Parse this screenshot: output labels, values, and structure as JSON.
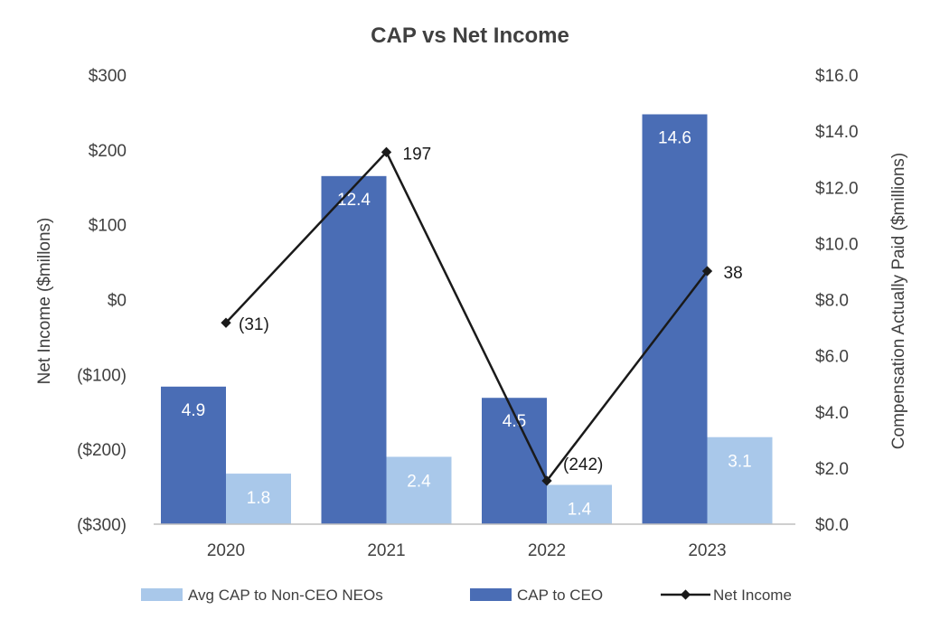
{
  "chart_data": {
    "type": "bar",
    "title": "CAP vs Net Income",
    "categories": [
      "2020",
      "2021",
      "2022",
      "2023"
    ],
    "ylabel_left": "Net Income ($millons)",
    "ylabel_right": "Compensation Actually Paid ($millions)",
    "ylim_left": [
      -300,
      300
    ],
    "ylim_right": [
      0,
      16
    ],
    "left_ticks": [
      "$300",
      "$200",
      "$100",
      "$0",
      "($100)",
      "($200)",
      "($300)"
    ],
    "left_tick_values": [
      300,
      200,
      100,
      0,
      -100,
      -200,
      -300
    ],
    "right_ticks": [
      "$16.0",
      "$14.0",
      "$12.0",
      "$10.0",
      "$8.0",
      "$6.0",
      "$4.0",
      "$2.0",
      "$0.0"
    ],
    "right_tick_values": [
      16,
      14,
      12,
      10,
      8,
      6,
      4,
      2,
      0
    ],
    "series": [
      {
        "name": "CAP to CEO",
        "axis": "right",
        "kind": "bar",
        "color": "#4a6db5",
        "values": [
          4.9,
          12.4,
          4.5,
          14.6
        ],
        "labels": [
          "4.9",
          "12.4",
          "4.5",
          "14.6"
        ]
      },
      {
        "name": "Avg CAP to Non-CEO NEOs",
        "axis": "right",
        "kind": "bar",
        "color": "#a9c8ea",
        "values": [
          1.8,
          2.4,
          1.4,
          3.1
        ],
        "labels": [
          "1.8",
          "2.4",
          "1.4",
          "3.1"
        ]
      },
      {
        "name": "Net Income",
        "axis": "left",
        "kind": "line",
        "color": "#1a1a1a",
        "values": [
          -31,
          197,
          -242,
          38
        ],
        "labels": [
          "(31)",
          "197",
          "(242)",
          "38"
        ]
      }
    ],
    "legend": [
      "Avg CAP to Non-CEO NEOs",
      "CAP to CEO",
      "Net Income"
    ],
    "legend_position": "bottom",
    "grid": false
  }
}
